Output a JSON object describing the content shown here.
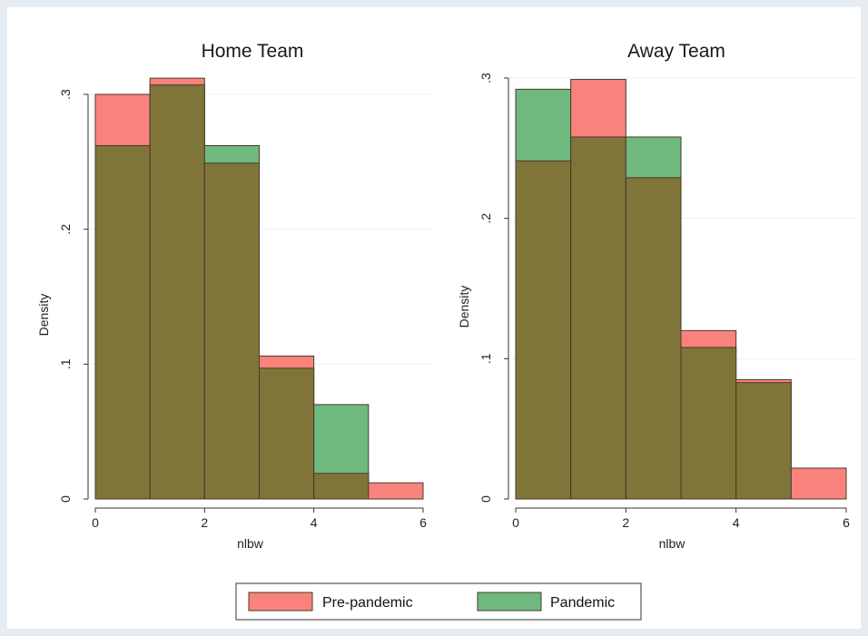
{
  "chart_data": [
    {
      "type": "bar",
      "title": "Home Team",
      "xlabel": "nlbw",
      "ylabel": "Density",
      "xlim": [
        0,
        6
      ],
      "ylim": [
        0,
        0.3
      ],
      "x_ticks": [
        0,
        2,
        4,
        6
      ],
      "x_tick_labels": [
        "0",
        "2",
        "4",
        "6"
      ],
      "y_ticks": [
        0,
        0.1,
        0.2,
        0.3
      ],
      "y_tick_labels": [
        "0",
        ".1",
        ".2",
        ".3"
      ],
      "bin_edges": [
        0,
        1,
        2,
        3,
        4,
        5,
        6
      ],
      "series": [
        {
          "name": "Pre-pandemic",
          "values": [
            0.3,
            0.312,
            0.249,
            0.106,
            0.019,
            0.012
          ]
        },
        {
          "name": "Pandemic",
          "values": [
            0.262,
            0.307,
            0.262,
            0.097,
            0.07,
            0.0
          ]
        }
      ],
      "grid": true
    },
    {
      "type": "bar",
      "title": "Away Team",
      "xlabel": "nlbw",
      "ylabel": "Density",
      "xlim": [
        0,
        6
      ],
      "ylim": [
        0,
        0.3
      ],
      "x_ticks": [
        0,
        2,
        4,
        6
      ],
      "x_tick_labels": [
        "0",
        "2",
        "4",
        "6"
      ],
      "y_ticks": [
        0,
        0.1,
        0.2,
        0.3
      ],
      "y_tick_labels": [
        "0",
        ".1",
        ".2",
        ".3"
      ],
      "bin_edges": [
        0,
        1,
        2,
        3,
        4,
        5,
        6
      ],
      "series": [
        {
          "name": "Pre-pandemic",
          "values": [
            0.241,
            0.299,
            0.229,
            0.12,
            0.085,
            0.022
          ]
        },
        {
          "name": "Pandemic",
          "values": [
            0.292,
            0.258,
            0.258,
            0.108,
            0.083,
            0.0
          ]
        }
      ],
      "grid": true
    }
  ],
  "legend": {
    "placement": "bottom",
    "items": [
      {
        "label": "Pre-pandemic",
        "color": "#f9837c"
      },
      {
        "label": "Pandemic",
        "color": "#6fb97f"
      }
    ]
  },
  "colors": {
    "pre_pandemic": "#f9837c",
    "pandemic": "#6fb97f",
    "overlap": "#807538",
    "bar_outline": "#4a3a2a",
    "frame_background": "#e6ecf0",
    "plot_background": "#ffffff",
    "gridline": "#e8eef2"
  }
}
